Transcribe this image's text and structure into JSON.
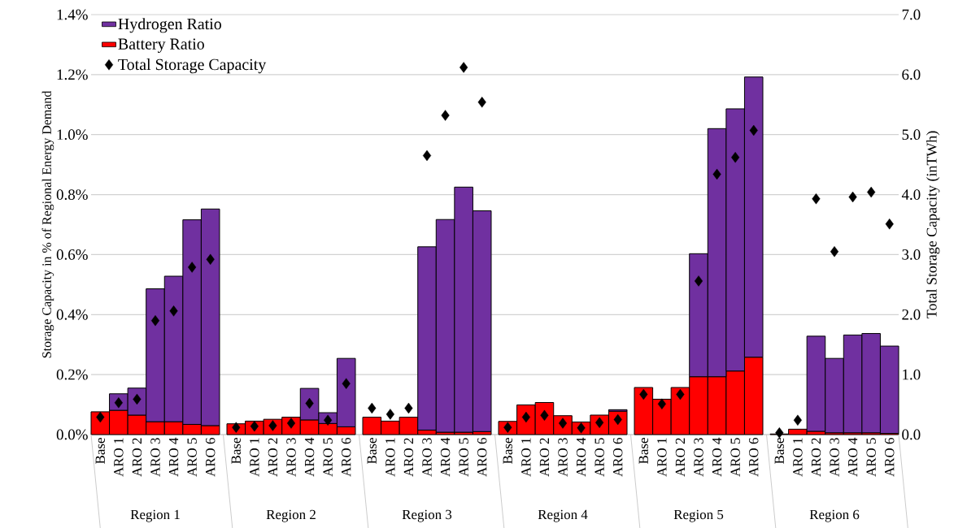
{
  "chart_data": {
    "type": "bar",
    "stacked": true,
    "grid": "y",
    "legend": "top left",
    "ylabel": "Storage Capacity in % of Regional Energy Demand",
    "y2label": "Total Storage Capacity (inTWh)",
    "categories": [
      "Base",
      "ARO 1",
      "ARO 2",
      "ARO 3",
      "ARO 4",
      "ARO 5",
      "ARO 6",
      "Base",
      "ARO 1",
      "ARO 2",
      "ARO 3",
      "ARO 4",
      "ARO 5",
      "ARO 6",
      "Base",
      "ARO 1",
      "ARO 2",
      "ARO 3",
      "ARO 4",
      "ARO 5",
      "ARO 6",
      "Base",
      "ARO 1",
      "ARO 2",
      "ARO 3",
      "ARO 4",
      "ARO 5",
      "ARO 6",
      "Base",
      "ARO 1",
      "ARO 2",
      "ARO 3",
      "ARO 4",
      "ARO 5",
      "ARO 6",
      "Base",
      "ARO 1",
      "ARO 2",
      "ARO 3",
      "ARO 4",
      "ARO 5",
      "ARO 6"
    ],
    "annotations": [
      "Region 1",
      "Region 2",
      "Region 3",
      "Region 4",
      "Region 5",
      "Region 6"
    ],
    "series": [
      {
        "name": "Battery Ratio",
        "color": "#ff0000",
        "values": [
          0.076,
          0.081,
          0.065,
          0.043,
          0.043,
          0.034,
          0.03,
          0.036,
          0.045,
          0.051,
          0.058,
          0.049,
          0.037,
          0.026,
          0.058,
          0.045,
          0.058,
          0.015,
          0.008,
          0.008,
          0.01,
          0.044,
          0.099,
          0.107,
          0.063,
          0.042,
          0.065,
          0.078,
          0.157,
          0.118,
          0.157,
          0.193,
          0.193,
          0.212,
          0.258,
          0.002,
          0.018,
          0.011,
          0.006,
          0.006,
          0.006,
          0.004
        ]
      },
      {
        "name": "Hydrogen Ratio",
        "color": "#7030a0",
        "values": [
          0,
          0.055,
          0.09,
          0.443,
          0.485,
          0.682,
          0.722,
          0,
          0,
          0,
          0,
          0.105,
          0.036,
          0.228,
          0,
          0,
          0,
          0.611,
          0.709,
          0.817,
          0.736,
          0,
          0,
          0,
          0,
          0,
          0,
          0.005,
          0,
          0,
          0,
          0.41,
          0.827,
          0.874,
          0.934,
          0,
          0,
          0.317,
          0.248,
          0.326,
          0.331,
          0.291
        ]
      },
      {
        "name": "Total Storage Capacity",
        "type": "scatter",
        "axis": "y2",
        "marker": "diamond",
        "color": "#000000",
        "values": [
          0.29,
          0.53,
          0.59,
          1.9,
          2.06,
          2.79,
          2.92,
          0.12,
          0.14,
          0.15,
          0.19,
          0.52,
          0.24,
          0.85,
          0.44,
          0.34,
          0.44,
          4.65,
          5.32,
          6.12,
          5.54,
          0.12,
          0.29,
          0.32,
          0.19,
          0.11,
          0.2,
          0.25,
          0.67,
          0.51,
          0.67,
          2.56,
          4.34,
          4.62,
          5.07,
          0.03,
          0.24,
          3.93,
          3.05,
          3.96,
          4.04,
          3.51
        ]
      }
    ],
    "ylim": [
      0,
      1.4
    ],
    "yticks": [
      {
        "value": 0,
        "label": "0.0%"
      },
      {
        "value": 0.2,
        "label": "0.2%"
      },
      {
        "value": 0.4,
        "label": "0.4%"
      },
      {
        "value": 0.6,
        "label": "0.6%"
      },
      {
        "value": 0.8,
        "label": "0.8%"
      },
      {
        "value": 1.0,
        "label": "1.0%"
      },
      {
        "value": 1.2,
        "label": "1.2%"
      },
      {
        "value": 1.4,
        "label": "1.4%"
      }
    ],
    "y2lim": [
      0,
      7
    ],
    "y2ticks": [
      {
        "value": 0,
        "label": "0.0"
      },
      {
        "value": 1,
        "label": "1.0"
      },
      {
        "value": 2,
        "label": "2.0"
      },
      {
        "value": 3,
        "label": "3.0"
      },
      {
        "value": 4,
        "label": "4.0"
      },
      {
        "value": 5,
        "label": "5.0"
      },
      {
        "value": 6,
        "label": "6.0"
      },
      {
        "value": 7,
        "label": "7.0"
      }
    ]
  }
}
